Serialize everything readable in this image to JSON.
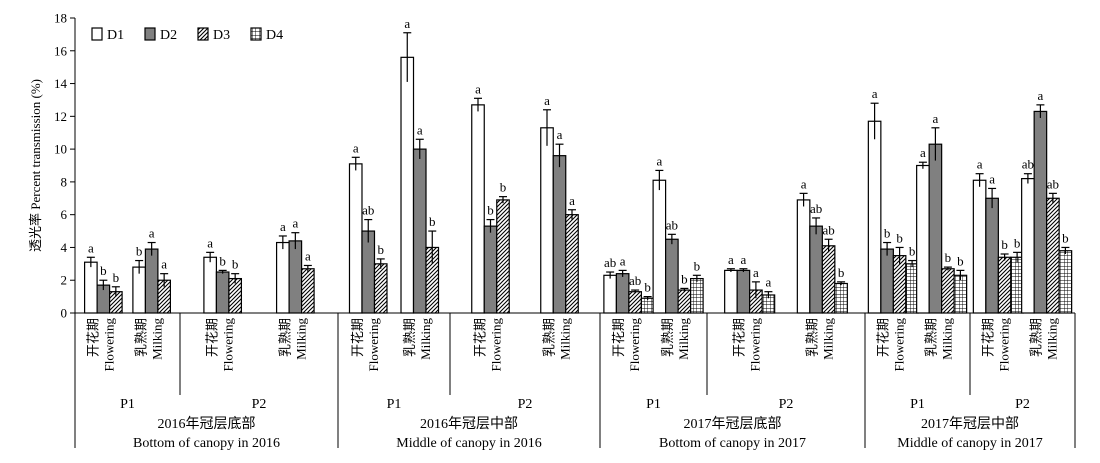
{
  "chart_data": {
    "type": "bar",
    "ylabel": "透光率 Percent transmission (%)",
    "ylim": [
      0,
      18
    ],
    "yticks": [
      0,
      2,
      4,
      6,
      8,
      10,
      12,
      14,
      16,
      18
    ],
    "legend_position": "top-left",
    "series": [
      {
        "name": "D1",
        "pattern": "white",
        "color": "#ffffff"
      },
      {
        "name": "D2",
        "pattern": "gray",
        "color": "#808080"
      },
      {
        "name": "D3",
        "pattern": "diagonal-hatch",
        "color": "#000000"
      },
      {
        "name": "D4",
        "pattern": "grid",
        "color": "#000000"
      }
    ],
    "groups": [
      {
        "label_cn": "2016年冠层底部",
        "label_en": "Bottom of canopy in 2016",
        "subgroups": [
          {
            "label": "P1",
            "stages": [
              {
                "label_cn": "开花期",
                "label_en": "Flowering",
                "bars": [
                  {
                    "series": "D1",
                    "value": 3.1,
                    "error": 0.3,
                    "letter": "a"
                  },
                  {
                    "series": "D2",
                    "value": 1.7,
                    "error": 0.3,
                    "letter": "b"
                  },
                  {
                    "series": "D3",
                    "value": 1.3,
                    "error": 0.3,
                    "letter": "b"
                  }
                ]
              },
              {
                "label_cn": "乳熟期",
                "label_en": "Milking",
                "bars": [
                  {
                    "series": "D1",
                    "value": 2.8,
                    "error": 0.4,
                    "letter": "b"
                  },
                  {
                    "series": "D2",
                    "value": 3.9,
                    "error": 0.4,
                    "letter": "a"
                  },
                  {
                    "series": "D3",
                    "value": 2.0,
                    "error": 0.4,
                    "letter": "a"
                  }
                ]
              }
            ]
          },
          {
            "label": "P2",
            "stages": [
              {
                "label_cn": "开花期",
                "label_en": "Flowering",
                "bars": [
                  {
                    "series": "D1",
                    "value": 3.4,
                    "error": 0.3,
                    "letter": "a"
                  },
                  {
                    "series": "D2",
                    "value": 2.5,
                    "error": 0.1,
                    "letter": "b"
                  },
                  {
                    "series": "D3",
                    "value": 2.1,
                    "error": 0.3,
                    "letter": "b"
                  }
                ]
              },
              {
                "label_cn": "乳熟期",
                "label_en": "Milking",
                "bars": [
                  {
                    "series": "D1",
                    "value": 4.3,
                    "error": 0.4,
                    "letter": "a"
                  },
                  {
                    "series": "D2",
                    "value": 4.4,
                    "error": 0.5,
                    "letter": "a"
                  },
                  {
                    "series": "D3",
                    "value": 2.7,
                    "error": 0.2,
                    "letter": "a"
                  }
                ]
              }
            ]
          }
        ]
      },
      {
        "label_cn": "2016年冠层中部",
        "label_en": "Middle of canopy in 2016",
        "subgroups": [
          {
            "label": "P1",
            "stages": [
              {
                "label_cn": "开花期",
                "label_en": "Flowering",
                "bars": [
                  {
                    "series": "D1",
                    "value": 9.1,
                    "error": 0.4,
                    "letter": "a"
                  },
                  {
                    "series": "D2",
                    "value": 5.0,
                    "error": 0.7,
                    "letter": "ab"
                  },
                  {
                    "series": "D3",
                    "value": 3.0,
                    "error": 0.3,
                    "letter": "b"
                  }
                ]
              },
              {
                "label_cn": "乳熟期",
                "label_en": "Milking",
                "bars": [
                  {
                    "series": "D1",
                    "value": 15.6,
                    "error": 1.5,
                    "letter": "a"
                  },
                  {
                    "series": "D2",
                    "value": 10.0,
                    "error": 0.6,
                    "letter": "a"
                  },
                  {
                    "series": "D3",
                    "value": 4.0,
                    "error": 1.0,
                    "letter": "b"
                  }
                ]
              }
            ]
          },
          {
            "label": "P2",
            "stages": [
              {
                "label_cn": "开花期",
                "label_en": "Flowering",
                "bars": [
                  {
                    "series": "D1",
                    "value": 12.7,
                    "error": 0.4,
                    "letter": "a"
                  },
                  {
                    "series": "D2",
                    "value": 5.3,
                    "error": 0.4,
                    "letter": "b"
                  },
                  {
                    "series": "D3",
                    "value": 6.9,
                    "error": 0.2,
                    "letter": "b"
                  }
                ]
              },
              {
                "label_cn": "乳熟期",
                "label_en": "Milking",
                "bars": [
                  {
                    "series": "D1",
                    "value": 11.3,
                    "error": 1.1,
                    "letter": "a"
                  },
                  {
                    "series": "D2",
                    "value": 9.6,
                    "error": 0.7,
                    "letter": "a"
                  },
                  {
                    "series": "D3",
                    "value": 6.0,
                    "error": 0.3,
                    "letter": "a"
                  }
                ]
              }
            ]
          }
        ]
      },
      {
        "label_cn": "2017年冠层底部",
        "label_en": "Bottom of canopy in 2017",
        "subgroups": [
          {
            "label": "P1",
            "stages": [
              {
                "label_cn": "开花期",
                "label_en": "Flowering",
                "bars": [
                  {
                    "series": "D1",
                    "value": 2.3,
                    "error": 0.2,
                    "letter": "ab"
                  },
                  {
                    "series": "D2",
                    "value": 2.4,
                    "error": 0.2,
                    "letter": "a"
                  },
                  {
                    "series": "D3",
                    "value": 1.3,
                    "error": 0.1,
                    "letter": "ab"
                  },
                  {
                    "series": "D4",
                    "value": 0.9,
                    "error": 0.1,
                    "letter": "b"
                  }
                ]
              },
              {
                "label_cn": "乳熟期",
                "label_en": "Milking",
                "bars": [
                  {
                    "series": "D1",
                    "value": 8.1,
                    "error": 0.6,
                    "letter": "a"
                  },
                  {
                    "series": "D2",
                    "value": 4.5,
                    "error": 0.3,
                    "letter": "ab"
                  },
                  {
                    "series": "D3",
                    "value": 1.4,
                    "error": 0.1,
                    "letter": "b"
                  },
                  {
                    "series": "D4",
                    "value": 2.1,
                    "error": 0.2,
                    "letter": "b"
                  }
                ]
              }
            ]
          },
          {
            "label": "P2",
            "stages": [
              {
                "label_cn": "开花期",
                "label_en": "Flowering",
                "bars": [
                  {
                    "series": "D1",
                    "value": 2.6,
                    "error": 0.1,
                    "letter": "a"
                  },
                  {
                    "series": "D2",
                    "value": 2.6,
                    "error": 0.1,
                    "letter": "a"
                  },
                  {
                    "series": "D3",
                    "value": 1.4,
                    "error": 0.5,
                    "letter": "a"
                  },
                  {
                    "series": "D4",
                    "value": 1.1,
                    "error": 0.2,
                    "letter": "a"
                  }
                ]
              },
              {
                "label_cn": "乳熟期",
                "label_en": "Milking",
                "bars": [
                  {
                    "series": "D1",
                    "value": 6.9,
                    "error": 0.4,
                    "letter": "a"
                  },
                  {
                    "series": "D2",
                    "value": 5.3,
                    "error": 0.5,
                    "letter": "ab"
                  },
                  {
                    "series": "D3",
                    "value": 4.1,
                    "error": 0.4,
                    "letter": "ab"
                  },
                  {
                    "series": "D4",
                    "value": 1.8,
                    "error": 0.1,
                    "letter": "b"
                  }
                ]
              }
            ]
          }
        ]
      },
      {
        "label_cn": "2017年冠层中部",
        "label_en": "Middle of canopy in 2017",
        "subgroups": [
          {
            "label": "P1",
            "stages": [
              {
                "label_cn": "开花期",
                "label_en": "Flowering",
                "bars": [
                  {
                    "series": "D1",
                    "value": 11.7,
                    "error": 1.1,
                    "letter": "a"
                  },
                  {
                    "series": "D2",
                    "value": 3.9,
                    "error": 0.4,
                    "letter": "b"
                  },
                  {
                    "series": "D3",
                    "value": 3.5,
                    "error": 0.5,
                    "letter": "b"
                  },
                  {
                    "series": "D4",
                    "value": 3.0,
                    "error": 0.2,
                    "letter": "b"
                  }
                ]
              },
              {
                "label_cn": "乳熟期",
                "label_en": "Milking",
                "bars": [
                  {
                    "series": "D1",
                    "value": 9.0,
                    "error": 0.2,
                    "letter": "a"
                  },
                  {
                    "series": "D2",
                    "value": 10.3,
                    "error": 1.0,
                    "letter": "a"
                  },
                  {
                    "series": "D3",
                    "value": 2.7,
                    "error": 0.1,
                    "letter": "b"
                  },
                  {
                    "series": "D4",
                    "value": 2.3,
                    "error": 0.3,
                    "letter": "b"
                  }
                ]
              }
            ]
          },
          {
            "label": "P2",
            "stages": [
              {
                "label_cn": "开花期",
                "label_en": "Flowering",
                "bars": [
                  {
                    "series": "D1",
                    "value": 8.1,
                    "error": 0.4,
                    "letter": "a"
                  },
                  {
                    "series": "D2",
                    "value": 7.0,
                    "error": 0.6,
                    "letter": "a"
                  },
                  {
                    "series": "D3",
                    "value": 3.4,
                    "error": 0.2,
                    "letter": "b"
                  },
                  {
                    "series": "D4",
                    "value": 3.4,
                    "error": 0.3,
                    "letter": "b"
                  }
                ]
              },
              {
                "label_cn": "乳熟期",
                "label_en": "Milking",
                "bars": [
                  {
                    "series": "D1",
                    "value": 8.2,
                    "error": 0.3,
                    "letter": "ab"
                  },
                  {
                    "series": "D2",
                    "value": 12.3,
                    "error": 0.4,
                    "letter": "a"
                  },
                  {
                    "series": "D3",
                    "value": 7.0,
                    "error": 0.3,
                    "letter": "ab"
                  },
                  {
                    "series": "D4",
                    "value": 3.8,
                    "error": 0.2,
                    "letter": "b"
                  }
                ]
              }
            ]
          }
        ]
      }
    ]
  }
}
